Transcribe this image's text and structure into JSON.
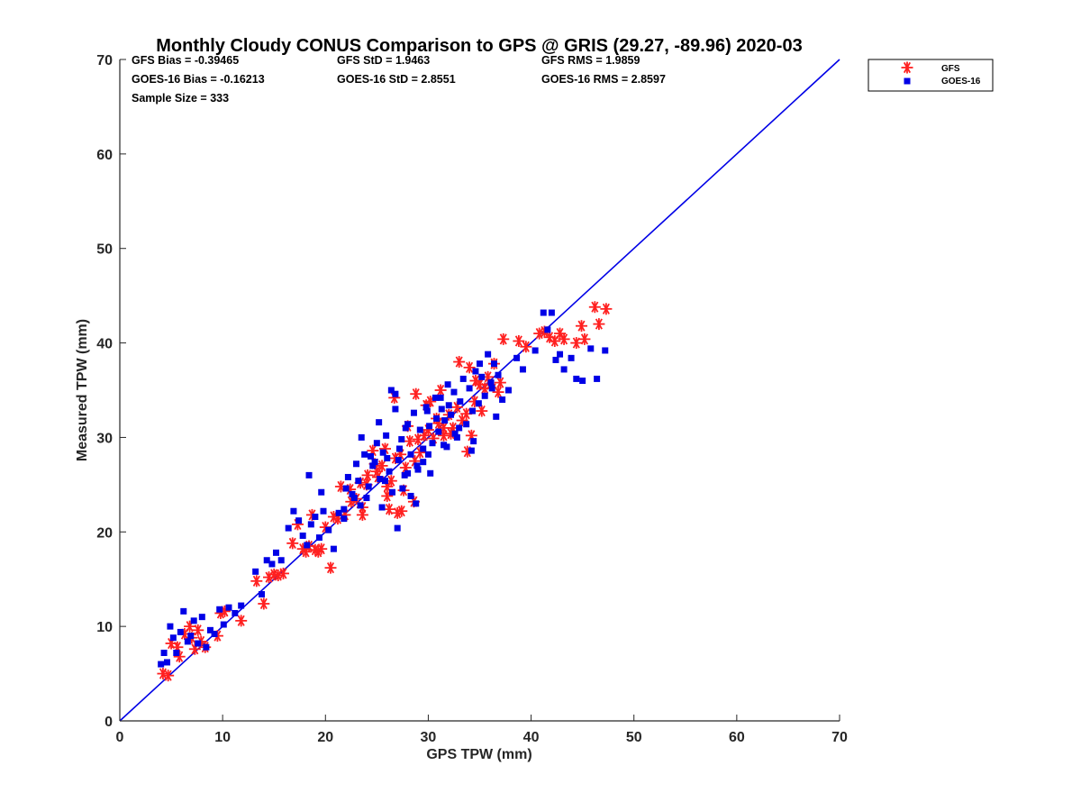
{
  "chart_data": {
    "type": "scatter",
    "title": "Monthly Cloudy CONUS Comparison to GPS @ GRIS (29.27, -89.96) 2020-03",
    "xlabel": "GPS TPW (mm)",
    "ylabel": "Measured TPW (mm)",
    "xlim": [
      0,
      70
    ],
    "ylim": [
      0,
      70
    ],
    "xticks": [
      "0",
      "10",
      "20",
      "30",
      "40",
      "50",
      "60",
      "70"
    ],
    "yticks": [
      "0",
      "10",
      "20",
      "30",
      "40",
      "50",
      "60",
      "70"
    ],
    "grid": false,
    "legend_placement": "outside-top-right",
    "reference_line": {
      "x": [
        0,
        70
      ],
      "y": [
        0,
        70
      ],
      "color": "#0000e6"
    },
    "stats": [
      {
        "text": "GFS Bias = -0.39465"
      },
      {
        "text": "GFS StD = 1.9463"
      },
      {
        "text": "GFS RMS = 1.9859"
      },
      {
        "text": "GOES-16 Bias = -0.16213"
      },
      {
        "text": "GOES-16 StD = 2.8551"
      },
      {
        "text": "GOES-16 RMS = 2.8597"
      },
      {
        "text": "Sample Size = 333"
      }
    ],
    "series": [
      {
        "name": "GFS",
        "marker": "asterisk",
        "color": "#ff2020",
        "x": [
          4.2,
          4.7,
          5.0,
          5.6,
          5.8,
          6.3,
          6.8,
          7.0,
          7.3,
          7.6,
          7.9,
          8.3,
          9.5,
          9.8,
          10.2,
          11.8,
          13.3,
          14.0,
          14.5,
          15.0,
          15.4,
          15.9,
          16.8,
          17.3,
          17.8,
          18.1,
          18.4,
          18.7,
          19.0,
          19.3,
          19.6,
          20.0,
          20.5,
          21.2,
          21.5,
          21.9,
          22.4,
          23.0,
          23.6,
          24.1,
          24.6,
          25.1,
          25.5,
          26.0,
          26.4,
          26.8,
          27.3,
          27.8,
          28.2,
          28.7,
          29.2,
          29.6,
          30.0,
          30.5,
          31.0,
          31.5,
          32.0,
          32.4,
          32.8,
          33.3,
          33.7,
          34.2,
          34.6,
          35.0,
          35.5,
          36.0,
          36.4,
          26.7,
          28.8,
          27.4,
          28.6,
          33.8,
          37.3,
          38.8,
          39.5,
          40.8,
          41.3,
          41.8,
          42.3,
          42.8,
          43.2,
          44.4,
          44.9,
          45.2,
          46.2,
          46.6,
          47.3,
          23.6,
          26.0,
          29.0,
          31.5,
          34.5,
          27.0,
          25.0,
          22.5,
          20.8,
          24.0,
          30.8,
          32.2,
          35.2,
          29.8,
          28.0,
          26.2,
          24.8,
          31.2,
          33.0,
          34.0,
          35.8,
          36.8,
          37.0,
          30.2,
          27.6,
          25.8,
          23.4
        ],
        "y": [
          5.0,
          4.8,
          8.2,
          7.8,
          6.8,
          9.2,
          10.0,
          8.8,
          7.6,
          9.6,
          8.4,
          7.8,
          9.0,
          11.4,
          11.6,
          10.6,
          14.8,
          12.4,
          15.2,
          15.5,
          15.4,
          15.6,
          18.8,
          20.8,
          18.2,
          17.9,
          18.5,
          21.8,
          18.1,
          17.9,
          18.2,
          20.5,
          16.2,
          21.4,
          24.8,
          21.8,
          24.5,
          23.5,
          21.8,
          26.0,
          28.6,
          25.8,
          27.0,
          24.8,
          25.4,
          27.8,
          28.2,
          26.8,
          29.6,
          27.5,
          28.4,
          30.2,
          30.8,
          29.9,
          31.5,
          30.2,
          32.4,
          31.0,
          33.2,
          31.8,
          32.5,
          30.2,
          36.0,
          35.6,
          35.2,
          35.6,
          37.8,
          34.2,
          34.6,
          22.2,
          23.2,
          28.5,
          40.4,
          40.2,
          39.6,
          41.0,
          41.2,
          40.6,
          40.2,
          41.0,
          40.4,
          40.0,
          41.8,
          40.4,
          43.8,
          42.0,
          43.6,
          22.6,
          23.8,
          29.8,
          31.0,
          33.8,
          22.0,
          26.4,
          23.2,
          21.6,
          25.0,
          32.0,
          30.4,
          32.8,
          33.4,
          31.2,
          22.4,
          27.2,
          35.0,
          38.0,
          37.4,
          36.4,
          34.8,
          35.8,
          33.8,
          24.4,
          28.8,
          25.2
        ]
      },
      {
        "name": "GOES-16",
        "marker": "square",
        "color": "#0000e6",
        "x": [
          4.0,
          4.3,
          4.6,
          4.9,
          5.2,
          5.5,
          5.9,
          6.2,
          6.6,
          6.9,
          7.2,
          7.6,
          8.0,
          8.4,
          8.8,
          9.2,
          9.7,
          10.1,
          10.6,
          11.2,
          11.8,
          13.2,
          13.8,
          14.3,
          14.8,
          15.2,
          15.7,
          16.4,
          16.9,
          17.4,
          17.8,
          18.2,
          18.6,
          19.0,
          19.4,
          19.8,
          20.3,
          20.8,
          21.3,
          21.8,
          22.2,
          22.6,
          23.0,
          23.4,
          23.8,
          24.2,
          24.6,
          25.0,
          25.3,
          25.6,
          25.9,
          26.2,
          26.5,
          26.8,
          27.1,
          27.4,
          27.7,
          28.0,
          28.3,
          28.6,
          28.9,
          29.2,
          29.5,
          29.8,
          30.1,
          30.4,
          30.7,
          31.0,
          31.3,
          31.6,
          31.9,
          32.2,
          32.5,
          32.8,
          33.1,
          33.4,
          33.7,
          34.0,
          34.3,
          34.6,
          34.9,
          35.2,
          35.5,
          35.8,
          36.1,
          36.4,
          36.8,
          37.2,
          37.8,
          38.6,
          39.2,
          40.4,
          41.2,
          41.6,
          42.0,
          42.4,
          42.8,
          43.2,
          43.9,
          44.4,
          45.0,
          45.8,
          46.4,
          47.2,
          18.4,
          19.6,
          26.4,
          27.0,
          30.2,
          26.8,
          25.2,
          23.5,
          24.4,
          25.8,
          27.5,
          28.3,
          29.5,
          30.8,
          31.8,
          33.0,
          34.2,
          35.0,
          36.2,
          24.0,
          25.5,
          27.2,
          28.8,
          29.9,
          31.2,
          32.6,
          22.8,
          21.8,
          23.2,
          26.0,
          28.0,
          30.0,
          32.0,
          34.4,
          36.6,
          22.0,
          24.8,
          27.8,
          29.0,
          31.5
        ],
        "y": [
          6.0,
          7.2,
          6.2,
          10.0,
          8.8,
          7.2,
          9.4,
          11.6,
          8.4,
          9.0,
          10.6,
          8.2,
          11.0,
          7.8,
          9.6,
          9.2,
          11.8,
          10.2,
          12.0,
          11.4,
          12.2,
          15.8,
          13.4,
          17.0,
          16.6,
          17.8,
          17.0,
          20.4,
          22.2,
          21.2,
          19.6,
          18.6,
          20.8,
          21.6,
          19.4,
          22.2,
          20.2,
          18.2,
          22.0,
          22.4,
          25.8,
          24.0,
          27.2,
          22.8,
          28.2,
          24.8,
          27.0,
          29.4,
          25.6,
          28.4,
          30.2,
          26.4,
          24.2,
          34.6,
          27.6,
          29.8,
          26.0,
          31.4,
          28.2,
          32.6,
          27.0,
          30.8,
          28.8,
          33.2,
          31.2,
          29.4,
          34.2,
          30.6,
          33.0,
          31.8,
          35.6,
          32.4,
          34.8,
          30.0,
          33.8,
          36.2,
          31.4,
          35.2,
          32.8,
          37.0,
          33.6,
          36.4,
          34.4,
          38.8,
          35.8,
          37.8,
          36.6,
          34.0,
          35.0,
          38.4,
          37.2,
          39.2,
          43.2,
          41.4,
          43.2,
          38.2,
          38.8,
          37.2,
          38.4,
          36.2,
          36.0,
          39.4,
          36.2,
          39.2,
          26.0,
          24.2,
          35.0,
          20.4,
          26.2,
          33.0,
          31.6,
          30.0,
          28.0,
          25.4,
          24.6,
          23.8,
          27.4,
          32.0,
          29.0,
          31.0,
          28.6,
          37.8,
          35.2,
          23.6,
          22.6,
          28.8,
          23.0,
          32.8,
          34.2,
          30.4,
          23.6,
          21.4,
          25.4,
          27.8,
          26.2,
          28.2,
          33.4,
          29.6,
          32.2,
          24.6,
          27.4,
          31.0,
          26.6,
          29.2
        ]
      }
    ]
  }
}
